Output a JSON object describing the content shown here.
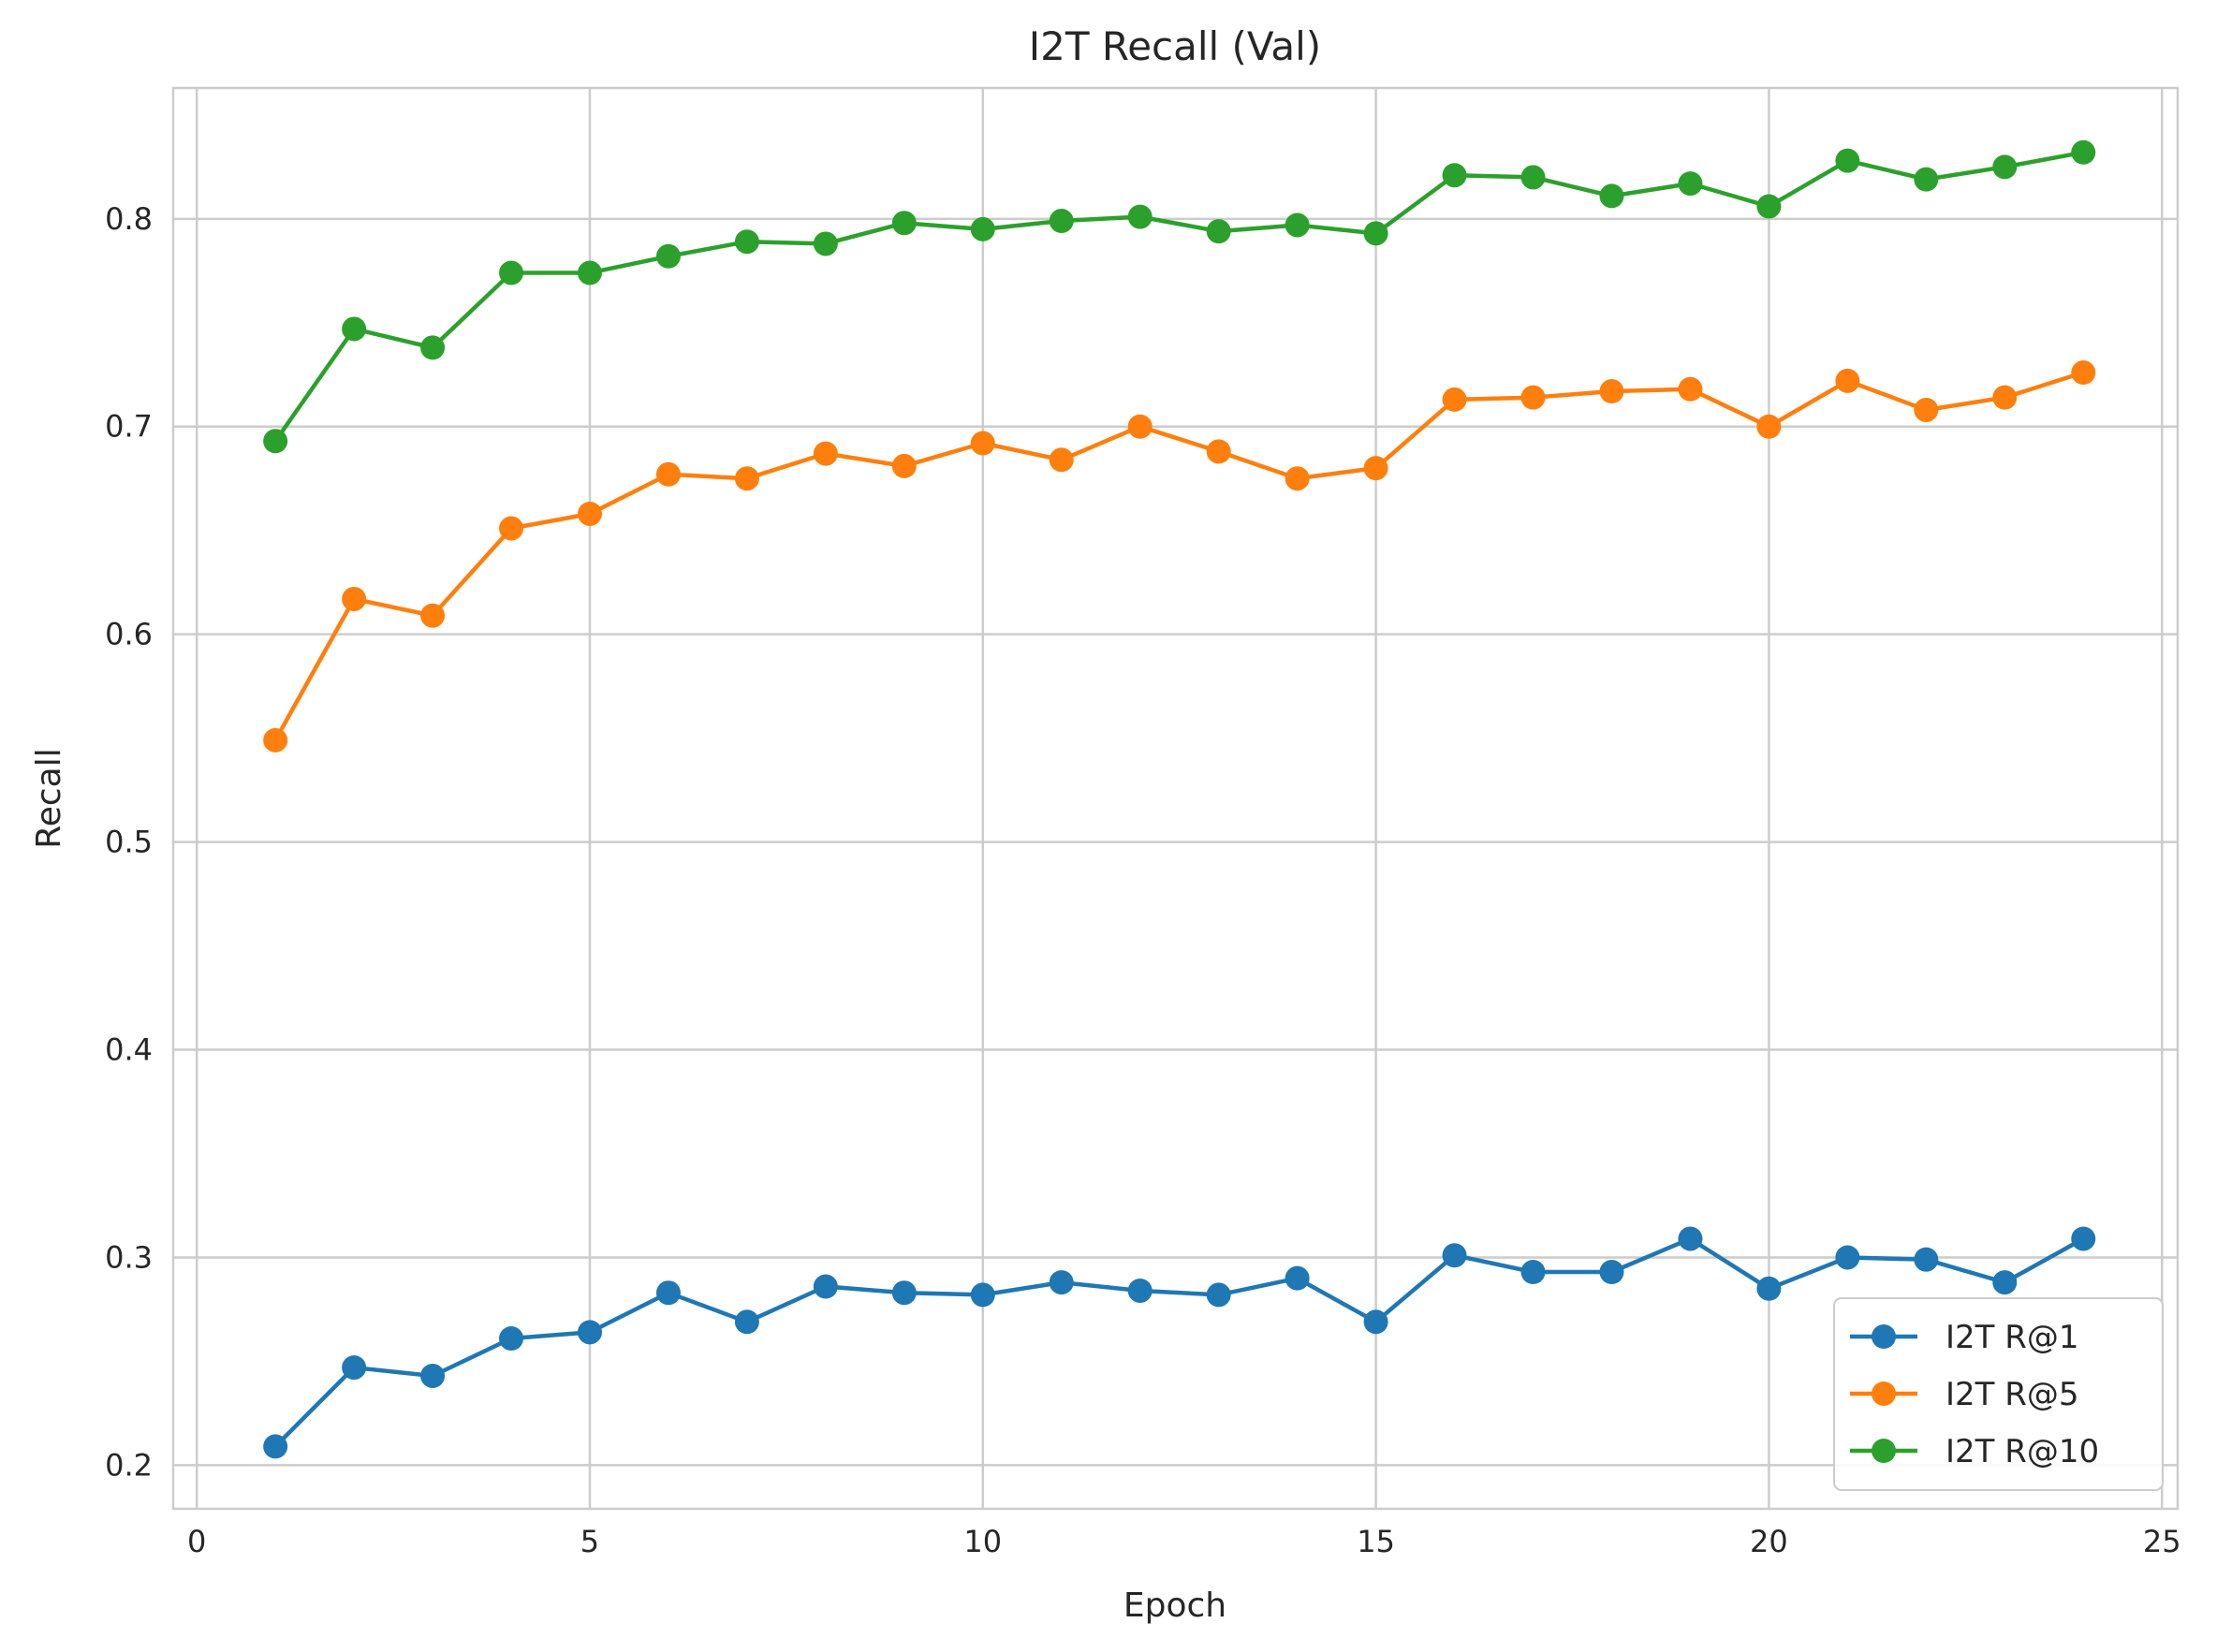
{
  "chart_data": {
    "type": "line",
    "title": "I2T Recall (Val)",
    "xlabel": "Epoch",
    "ylabel": "Recall",
    "xlim": [
      -0.3,
      25.2
    ],
    "ylim": [
      0.179,
      0.863
    ],
    "xticks": [
      0,
      5,
      10,
      15,
      20,
      25
    ],
    "yticks": [
      0.2,
      0.3,
      0.4,
      0.5,
      0.6,
      0.7,
      0.8
    ],
    "grid": true,
    "legend_position": "bottom-right",
    "x": [
      1,
      2,
      3,
      4,
      5,
      6,
      7,
      8,
      9,
      10,
      11,
      12,
      13,
      14,
      15,
      16,
      17,
      18,
      19,
      20,
      21,
      22,
      23,
      24
    ],
    "series": [
      {
        "name": "I2T R@1",
        "color": "#1f77b4",
        "values": [
          0.209,
          0.247,
          0.243,
          0.261,
          0.264,
          0.283,
          0.269,
          0.286,
          0.283,
          0.282,
          0.288,
          0.284,
          0.282,
          0.29,
          0.269,
          0.301,
          0.293,
          0.293,
          0.309,
          0.285,
          0.3,
          0.299,
          0.288,
          0.309
        ]
      },
      {
        "name": "I2T R@5",
        "color": "#ff7f0e",
        "values": [
          0.549,
          0.617,
          0.609,
          0.651,
          0.658,
          0.677,
          0.675,
          0.687,
          0.681,
          0.692,
          0.684,
          0.7,
          0.688,
          0.675,
          0.68,
          0.713,
          0.714,
          0.717,
          0.718,
          0.7,
          0.722,
          0.708,
          0.714,
          0.726
        ]
      },
      {
        "name": "I2T R@10",
        "color": "#2ca02c",
        "values": [
          0.693,
          0.747,
          0.738,
          0.774,
          0.774,
          0.782,
          0.789,
          0.788,
          0.798,
          0.795,
          0.799,
          0.801,
          0.794,
          0.797,
          0.793,
          0.821,
          0.82,
          0.811,
          0.817,
          0.806,
          0.828,
          0.819,
          0.825,
          0.832
        ]
      }
    ]
  }
}
